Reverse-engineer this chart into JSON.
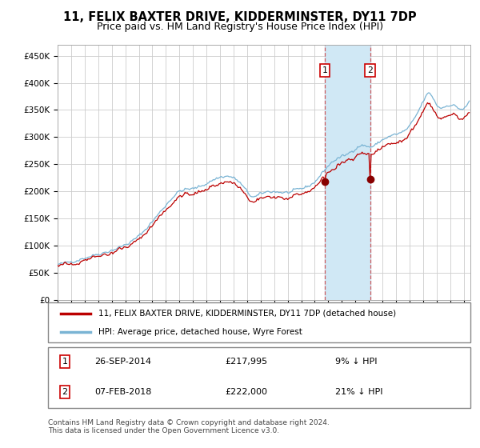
{
  "title": "11, FELIX BAXTER DRIVE, KIDDERMINSTER, DY11 7DP",
  "subtitle": "Price paid vs. HM Land Registry's House Price Index (HPI)",
  "title_fontsize": 10.5,
  "subtitle_fontsize": 9,
  "ylabel_ticks": [
    "£0",
    "£50K",
    "£100K",
    "£150K",
    "£200K",
    "£250K",
    "£300K",
    "£350K",
    "£400K",
    "£450K"
  ],
  "ytick_values": [
    0,
    50000,
    100000,
    150000,
    200000,
    250000,
    300000,
    350000,
    400000,
    450000
  ],
  "ylim": [
    0,
    470000
  ],
  "xlim_start": 1995.0,
  "xlim_end": 2025.5,
  "hpi_color": "#7ab4d4",
  "price_color": "#bb0000",
  "shade_color": "#d0e8f5",
  "point1_date": 2014.74,
  "point1_price": 217995,
  "point2_date": 2018.09,
  "point2_price": 222000,
  "legend_line1": "11, FELIX BAXTER DRIVE, KIDDERMINSTER, DY11 7DP (detached house)",
  "legend_line2": "HPI: Average price, detached house, Wyre Forest",
  "annotation1_label": "1",
  "annotation1_date": "26-SEP-2014",
  "annotation1_price": "£217,995",
  "annotation1_pct": "9% ↓ HPI",
  "annotation2_label": "2",
  "annotation2_date": "07-FEB-2018",
  "annotation2_price": "£222,000",
  "annotation2_pct": "21% ↓ HPI",
  "footer": "Contains HM Land Registry data © Crown copyright and database right 2024.\nThis data is licensed under the Open Government Licence v3.0.",
  "grid_color": "#cccccc"
}
